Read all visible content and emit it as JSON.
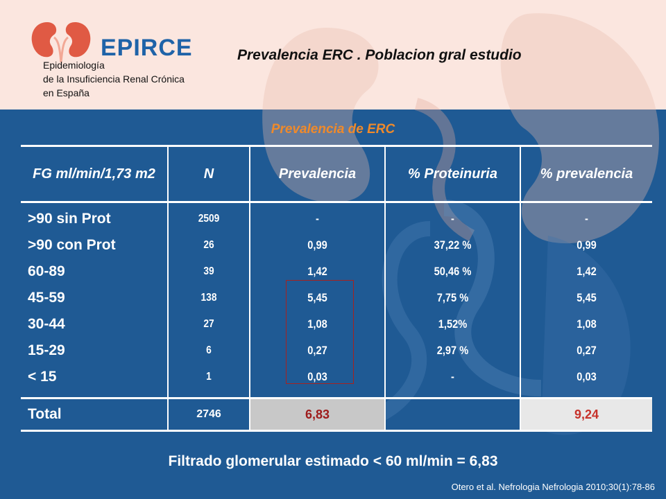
{
  "logo": {
    "brand": "EPIRCE",
    "lines": [
      "Epidemiología",
      "de la Insuficiencia Renal Crónica",
      "en España"
    ]
  },
  "header": {
    "title": "Prevalencia ERC . Poblacion gral estudio"
  },
  "table": {
    "caption": "Prevalencia de ERC",
    "headers": [
      "FG ml/min/1,73 m2",
      "N",
      "Prevalencia",
      "% Proteinuria",
      "% prevalencia"
    ],
    "rows": [
      {
        "fg": ">90 sin  Prot",
        "n": "2509",
        "prevalencia": "-",
        "proteinuria": "-",
        "pct_prevalencia": "-"
      },
      {
        "fg": ">90 con Prot",
        "n": "26",
        "prevalencia": "0,99",
        "proteinuria": "37,22 %",
        "pct_prevalencia": "0,99"
      },
      {
        "fg": "60-89",
        "n": "39",
        "prevalencia": "1,42",
        "proteinuria": "50,46 %",
        "pct_prevalencia": "1,42"
      },
      {
        "fg": "45-59",
        "n": "138",
        "prevalencia": "5,45",
        "proteinuria": "7,75 %",
        "pct_prevalencia": "5,45"
      },
      {
        "fg": "30-44",
        "n": "27",
        "prevalencia": "1,08",
        "proteinuria": "1,52%",
        "pct_prevalencia": "1,08"
      },
      {
        "fg": "15-29",
        "n": "6",
        "prevalencia": "0,27",
        "proteinuria": "2,97 %",
        "pct_prevalencia": "0,27"
      },
      {
        "fg": "< 15",
        "n": "1",
        "prevalencia": "0,03",
        "proteinuria": "-",
        "pct_prevalencia": "0,03"
      }
    ],
    "total": {
      "label": "Total",
      "n": "2746",
      "prevalencia": "6,83",
      "proteinuria": "",
      "pct_prevalencia": "9,24"
    }
  },
  "footer": {
    "note": "Filtrado glomerular estimado < 60 ml/min = 6,83",
    "citation": "Otero et al. Nefrologia Nefrologia 2010;30(1):78-86"
  },
  "colors": {
    "background": "#1f5a94",
    "top_band": "#fbe6df",
    "caption": "#f08a2a",
    "brand": "#1f63a8",
    "total_prevalencia": "#9e1b1b",
    "total_pct": "#c7322b",
    "highlight_box": "#a8221e"
  },
  "icons": {
    "logo_mark": "kidneys-icon",
    "decoration": "kidney-silhouette-icon"
  }
}
